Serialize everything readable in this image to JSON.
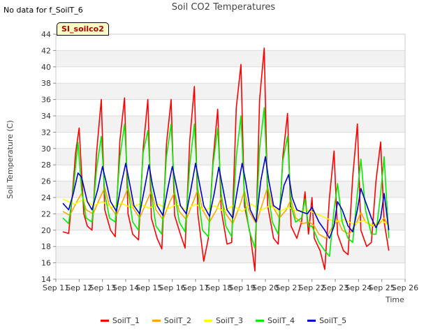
{
  "header": {
    "title": "Soil CO2 Temperatures",
    "no_data": "No data for f_SoilT_6",
    "tag": "SI_soilco2"
  },
  "chart_data": {
    "type": "line",
    "title": "Soil CO2 Temperatures",
    "xlabel": "Time",
    "ylabel": "Soil Temperature (C)",
    "ylim": [
      14,
      44
    ],
    "xlim": [
      11,
      26
    ],
    "y_ticks": [
      14,
      16,
      18,
      20,
      22,
      24,
      26,
      28,
      30,
      32,
      34,
      36,
      38,
      40,
      42,
      44
    ],
    "x_ticks": [
      11,
      12,
      13,
      14,
      15,
      16,
      17,
      18,
      19,
      20,
      21,
      22,
      23,
      24,
      25,
      26
    ],
    "x_tick_labels": [
      "Sep 11",
      "Sep 12",
      "Sep 13",
      "Sep 14",
      "Sep 15",
      "Sep 16",
      "Sep 17",
      "Sep 18",
      "Sep 19",
      "Sep 20",
      "Sep 21",
      "Sep 22",
      "Sep 23",
      "Sep 24",
      "Sep 25",
      "Sep 26"
    ],
    "grid": "horizontal bands",
    "legend_position": "bottom",
    "series": [
      {
        "name": "SoilT_1",
        "color": "#ff0000",
        "x": [
          11.3,
          11.55,
          11.7,
          11.85,
          12.0,
          12.2,
          12.35,
          12.55,
          12.75,
          12.95,
          13.1,
          13.35,
          13.55,
          13.75,
          13.95,
          14.1,
          14.3,
          14.55,
          14.75,
          14.95,
          15.1,
          15.35,
          15.55,
          15.75,
          15.95,
          16.1,
          16.35,
          16.55,
          16.75,
          16.95,
          17.1,
          17.35,
          17.55,
          17.75,
          17.95,
          18.1,
          18.35,
          18.55,
          18.75,
          18.95,
          19.1,
          19.35,
          19.55,
          19.75,
          19.95,
          20.1,
          20.35,
          20.55,
          20.75,
          20.95,
          21.1,
          21.35,
          21.55,
          21.7,
          21.85,
          22.0,
          22.1,
          22.35,
          22.55,
          22.75,
          22.95,
          23.1,
          23.35,
          23.55,
          23.75,
          23.95,
          24.1,
          24.35,
          24.55,
          24.75,
          24.95,
          25.1,
          25.3
        ],
        "y": [
          19.8,
          19.6,
          24,
          29.5,
          32.5,
          22,
          20.5,
          20,
          29.5,
          36,
          22.5,
          20,
          19.2,
          31,
          36.2,
          22,
          19.5,
          18.8,
          30,
          36,
          21.5,
          19,
          17.7,
          30.5,
          36,
          21.8,
          19.5,
          17.8,
          31,
          37.6,
          22,
          16.2,
          19,
          28.5,
          34.8,
          22.5,
          18.3,
          18.5,
          35,
          40.3,
          23,
          19.5,
          15,
          36,
          42.3,
          23,
          19,
          18.3,
          29,
          34.3,
          20.5,
          19,
          21,
          24.7,
          19.5,
          24,
          19,
          17.5,
          15.2,
          24,
          29.7,
          19.5,
          17.5,
          17,
          26.5,
          33,
          20,
          18,
          18.5,
          26,
          30.8,
          21,
          17.5
        ]
      },
      {
        "name": "SoilT_2",
        "color": "#ffa500",
        "x": [
          11.3,
          11.6,
          11.9,
          12.1,
          12.3,
          12.6,
          12.9,
          13.1,
          13.3,
          13.6,
          13.9,
          14.1,
          14.3,
          14.6,
          14.9,
          15.1,
          15.3,
          15.6,
          15.9,
          16.1,
          16.3,
          16.6,
          16.9,
          17.1,
          17.3,
          17.6,
          17.9,
          18.1,
          18.3,
          18.6,
          18.9,
          19.1,
          19.3,
          19.6,
          19.9,
          20.1,
          20.3,
          20.6,
          20.9,
          21.1,
          21.3,
          21.6,
          21.9,
          22.1,
          22.3,
          22.6,
          22.9,
          23.1,
          23.3,
          23.6,
          23.9,
          24.1,
          24.3,
          24.6,
          24.9,
          25.1,
          25.3
        ],
        "y": [
          22.3,
          21.8,
          23.5,
          24.5,
          22.5,
          22,
          24,
          25.2,
          23,
          21.8,
          23.8,
          25.2,
          22.8,
          21.5,
          23.5,
          24.8,
          22.5,
          21.3,
          23.5,
          24.6,
          22.3,
          21.3,
          23.5,
          25,
          22.5,
          21,
          22.5,
          24,
          22,
          20.8,
          23,
          24.8,
          22.3,
          20.8,
          23.5,
          25.3,
          23,
          21.5,
          22.5,
          23.8,
          21.5,
          20.8,
          21,
          20.5,
          19.5,
          19,
          20.5,
          21.3,
          20,
          19.5,
          20.8,
          22.2,
          21,
          20.5,
          20.8,
          21.5,
          20.5
        ]
      },
      {
        "name": "SoilT_3",
        "color": "#ffff00",
        "x": [
          11.3,
          11.8,
          12.2,
          12.6,
          13.0,
          13.4,
          13.8,
          14.2,
          14.6,
          15.0,
          15.4,
          15.8,
          16.2,
          16.6,
          17.0,
          17.4,
          17.8,
          18.2,
          18.6,
          19.0,
          19.4,
          19.8,
          20.2,
          20.6,
          21.0,
          21.4,
          21.8,
          22.2,
          22.6,
          23.0,
          23.4,
          23.8,
          24.2,
          24.6,
          25.0,
          25.3
        ],
        "y": [
          23.8,
          23.2,
          23.8,
          23.0,
          23.5,
          22.8,
          23.3,
          22.8,
          23.2,
          22.7,
          23.2,
          22.6,
          23.2,
          22.5,
          23.2,
          22.4,
          23.0,
          22.3,
          23.0,
          22.3,
          23.2,
          22.4,
          23.0,
          22.3,
          22.8,
          22.3,
          22.5,
          22.0,
          21.5,
          21.0,
          21.3,
          20.7,
          21.2,
          20.6,
          21.2,
          20.5
        ]
      },
      {
        "name": "SoilT_4",
        "color": "#00ee00",
        "x": [
          11.3,
          11.55,
          11.75,
          11.95,
          12.1,
          12.3,
          12.55,
          12.75,
          12.95,
          13.1,
          13.3,
          13.55,
          13.75,
          13.95,
          14.1,
          14.3,
          14.55,
          14.75,
          14.95,
          15.1,
          15.3,
          15.55,
          15.75,
          15.95,
          16.1,
          16.3,
          16.55,
          16.75,
          16.95,
          17.1,
          17.3,
          17.55,
          17.75,
          17.95,
          18.1,
          18.3,
          18.55,
          18.75,
          18.95,
          19.1,
          19.3,
          19.55,
          19.75,
          19.95,
          20.1,
          20.3,
          20.55,
          20.75,
          20.95,
          21.1,
          21.3,
          21.55,
          21.7,
          21.85,
          22.0,
          22.3,
          22.55,
          22.75,
          22.95,
          23.1,
          23.3,
          23.55,
          23.75,
          23.95,
          24.1,
          24.3,
          24.55,
          24.75,
          24.95,
          25.1,
          25.3
        ],
        "y": [
          21.5,
          20.8,
          25,
          30.8,
          25,
          21.5,
          21,
          27.5,
          31.5,
          24.5,
          21.5,
          21,
          29,
          33,
          25,
          21,
          20,
          29.5,
          32.2,
          24.5,
          20.5,
          19.5,
          29,
          33,
          24.5,
          21,
          19.8,
          28,
          33,
          24.5,
          20,
          19.2,
          28,
          32.5,
          24.5,
          20.5,
          19.2,
          29,
          34,
          24,
          20,
          17.8,
          30,
          35,
          25,
          21,
          19.5,
          28.5,
          31.5,
          23,
          21,
          21.5,
          23.8,
          20.5,
          20.5,
          18.5,
          17.5,
          16.8,
          22.5,
          25.7,
          21,
          19,
          18.5,
          24.5,
          28.7,
          22.5,
          19.5,
          19.5,
          24.5,
          29,
          19
        ]
      },
      {
        "name": "SoilT_5",
        "color": "#0000cc",
        "x": [
          11.3,
          11.55,
          11.75,
          11.95,
          12.1,
          12.35,
          12.55,
          12.8,
          13.0,
          13.15,
          13.35,
          13.6,
          13.8,
          14.0,
          14.15,
          14.35,
          14.6,
          14.8,
          15.0,
          15.15,
          15.35,
          15.6,
          15.8,
          16.0,
          16.15,
          16.35,
          16.6,
          16.8,
          17.0,
          17.15,
          17.35,
          17.6,
          17.8,
          18.0,
          18.15,
          18.35,
          18.6,
          18.8,
          19.0,
          19.15,
          19.35,
          19.6,
          19.8,
          20.0,
          20.15,
          20.35,
          20.6,
          20.8,
          21.0,
          21.15,
          21.35,
          21.6,
          21.8,
          22.0,
          22.3,
          22.55,
          22.75,
          22.95,
          23.1,
          23.3,
          23.55,
          23.75,
          23.95,
          24.1,
          24.3,
          24.55,
          24.75,
          24.95,
          25.1,
          25.3
        ],
        "y": [
          23.3,
          22.5,
          24.5,
          27,
          26.5,
          23.5,
          22.5,
          25,
          27.8,
          26,
          23.5,
          22.3,
          25.5,
          28.2,
          26,
          23,
          22,
          25,
          28,
          25.5,
          23,
          21.8,
          25,
          27.8,
          25.8,
          23,
          22,
          25,
          28.2,
          26,
          23,
          21.7,
          24.5,
          27.7,
          25.5,
          22.5,
          21.5,
          25,
          28.2,
          26,
          22.5,
          21,
          26,
          29,
          26,
          23,
          22.5,
          25.5,
          26.8,
          24,
          22.5,
          22.2,
          22,
          22.8,
          21,
          20,
          19,
          20.5,
          23.5,
          22.5,
          20.5,
          19.8,
          22.5,
          25.1,
          23.5,
          21.5,
          20.3,
          21.5,
          24.5,
          20
        ]
      }
    ]
  }
}
